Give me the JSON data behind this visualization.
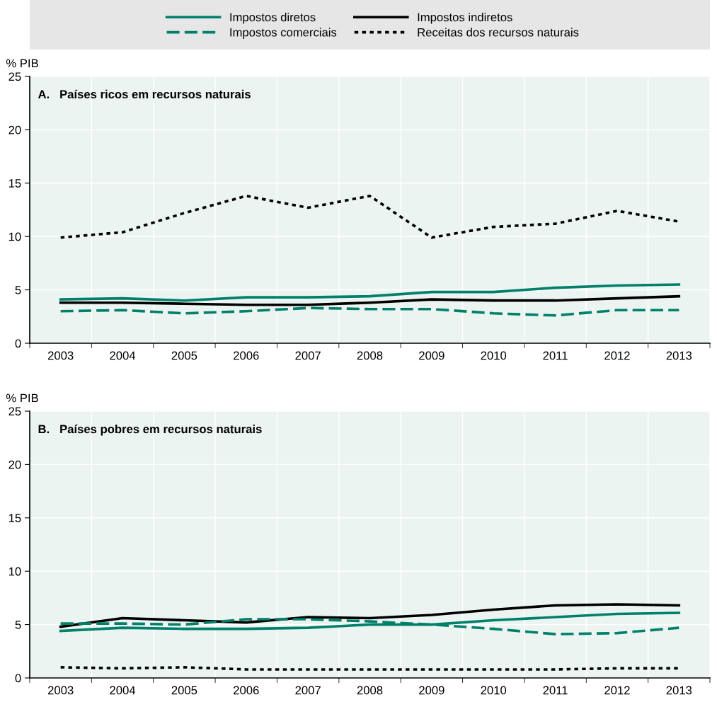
{
  "chart_data": [
    {
      "type": "line",
      "title": "A.   Países ricos em recursos naturais",
      "ylabel": "% PIB",
      "legend": "top",
      "grid": true,
      "categories": [
        "2003",
        "2004",
        "2005",
        "2006",
        "2007",
        "2008",
        "2009",
        "2010",
        "2011",
        "2012",
        "2013"
      ],
      "ylim": [
        0,
        25
      ],
      "yticks": [
        0,
        5,
        10,
        15,
        20,
        25
      ],
      "series": [
        {
          "name": "Impostos diretos",
          "color": "#00806a",
          "line_style": "solid",
          "values": [
            4.1,
            4.2,
            4.0,
            4.3,
            4.3,
            4.4,
            4.8,
            4.8,
            5.2,
            5.4,
            5.5
          ]
        },
        {
          "name": "Impostos indiretos",
          "color": "#000000",
          "line_style": "solid",
          "values": [
            3.8,
            3.8,
            3.7,
            3.6,
            3.6,
            3.8,
            4.1,
            4.0,
            4.0,
            4.2,
            4.4
          ]
        },
        {
          "name": "Impostos comerciais",
          "color": "#00806a",
          "line_style": "dashed",
          "values": [
            3.0,
            3.1,
            2.8,
            3.0,
            3.3,
            3.2,
            3.2,
            2.8,
            2.6,
            3.1,
            3.1
          ]
        },
        {
          "name": "Receitas dos recursos naturais",
          "color": "#000000",
          "line_style": "dotted",
          "values": [
            9.9,
            10.4,
            12.2,
            13.8,
            12.7,
            13.8,
            9.9,
            10.9,
            11.2,
            12.4,
            11.4
          ]
        }
      ]
    },
    {
      "type": "line",
      "title": "B.   Países pobres em recursos naturais",
      "ylabel": "% PIB",
      "grid": true,
      "categories": [
        "2003",
        "2004",
        "2005",
        "2006",
        "2007",
        "2008",
        "2009",
        "2010",
        "2011",
        "2012",
        "2013"
      ],
      "ylim": [
        0,
        25
      ],
      "yticks": [
        0,
        5,
        10,
        15,
        20,
        25
      ],
      "series": [
        {
          "color": "#00806a",
          "line_style": "solid",
          "values": [
            4.4,
            4.7,
            4.6,
            4.6,
            4.7,
            5.0,
            5.0,
            5.4,
            5.7,
            6.0,
            6.1
          ]
        },
        {
          "color": "#000000",
          "line_style": "solid",
          "values": [
            4.8,
            5.6,
            5.4,
            5.2,
            5.7,
            5.6,
            5.9,
            6.4,
            6.8,
            6.9,
            6.8
          ]
        },
        {
          "color": "#00806a",
          "line_style": "dashed",
          "values": [
            5.1,
            5.1,
            5.0,
            5.5,
            5.5,
            5.3,
            5.0,
            4.6,
            4.1,
            4.2,
            4.7
          ]
        },
        {
          "color": "#000000",
          "line_style": "dotted",
          "values": [
            1.0,
            0.9,
            1.0,
            0.8,
            0.8,
            0.8,
            0.8,
            0.8,
            0.8,
            0.9,
            0.9
          ]
        }
      ]
    }
  ]
}
